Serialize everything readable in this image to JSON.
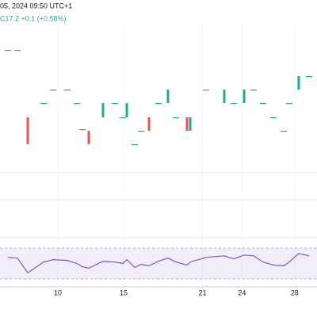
{
  "chart_data": {
    "type": "candlestick",
    "header": {
      "date": "05, 2024 09:50 UTC+1",
      "quote": "C17.2 +0.1 (+0.58%)"
    },
    "x": [
      6.2,
      6.93,
      7.71,
      8.92,
      9.64,
      10.72,
      11.45,
      11.87,
      12.35,
      13.43,
      14.34,
      14.94,
      15.24,
      15.84,
      16.33,
      16.93,
      17.65,
      18.37,
      18.98,
      19.82,
      20.06,
      21.27,
      22.65,
      23.37,
      24.16,
      24.88,
      25.6,
      26.39,
      27.17,
      27.59,
      28.31,
      29.1
    ],
    "open": [
      17.57,
      17.57,
      16.72,
      16.9,
      17.07,
      17.07,
      16.9,
      16.57,
      16.55,
      16.72,
      16.9,
      16.72,
      16.72,
      16.38,
      16.55,
      16.72,
      16.9,
      16.9,
      16.72,
      16.72,
      16.55,
      17.07,
      16.9,
      16.9,
      16.9,
      17.07,
      16.9,
      16.72,
      16.55,
      16.9,
      17.07,
      17.24
    ],
    "close": [
      17.57,
      17.57,
      16.38,
      16.9,
      17.07,
      17.07,
      16.9,
      16.57,
      16.38,
      16.9,
      16.9,
      16.72,
      16.9,
      16.38,
      16.55,
      16.55,
      16.9,
      17.07,
      16.72,
      16.55,
      16.72,
      17.07,
      17.07,
      16.9,
      17.07,
      17.07,
      16.9,
      16.72,
      16.55,
      16.9,
      17.24,
      17.24
    ],
    "up_color": "#26a69a",
    "down_color": "#ef5350",
    "xlim": [
      5.6,
      29.7
    ],
    "ylim": [
      15.7,
      17.8
    ],
    "xticks": [
      10,
      15,
      21,
      24,
      28
    ],
    "rsi": {
      "color": "#7e57c2",
      "ylim": [
        30,
        70
      ],
      "band": [
        30,
        70
      ],
      "values": [
        58,
        57,
        38,
        52,
        55,
        54,
        50,
        46,
        44,
        53,
        52,
        50,
        55,
        45,
        49,
        47,
        53,
        57,
        52,
        48,
        52,
        58,
        60,
        56,
        61,
        60,
        52,
        48,
        47,
        52,
        63,
        60
      ]
    }
  }
}
